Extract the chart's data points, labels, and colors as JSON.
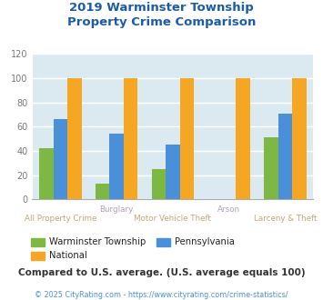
{
  "title": "2019 Warminster Township\nProperty Crime Comparison",
  "categories": [
    "All Property Crime",
    "Burglary",
    "Motor Vehicle Theft",
    "Arson",
    "Larceny & Theft"
  ],
  "warminster": [
    42,
    13,
    25,
    0,
    51
  ],
  "national": [
    100,
    100,
    100,
    100,
    100
  ],
  "pennsylvania": [
    66,
    54,
    45,
    0,
    71
  ],
  "bar_colors": {
    "warminster": "#7cb843",
    "national": "#f5a623",
    "pennsylvania": "#4a90d9"
  },
  "ylim": [
    0,
    120
  ],
  "yticks": [
    0,
    20,
    40,
    60,
    80,
    100,
    120
  ],
  "background_color": "#daeaf0",
  "title_color": "#1a5ca8",
  "note": "Compared to U.S. average. (U.S. average equals 100)",
  "footer": "© 2025 CityRating.com - https://www.cityrating.com/crime-statistics/",
  "top_labels": [
    [
      1,
      "Burglary"
    ],
    [
      3,
      "Arson"
    ]
  ],
  "bottom_labels": [
    [
      0,
      "All Property Crime"
    ],
    [
      2,
      "Motor Vehicle Theft"
    ],
    [
      4,
      "Larceny & Theft"
    ]
  ],
  "top_label_color": "#b0a0c0",
  "bottom_label_color": "#c0a878",
  "legend_labels": [
    "Warminster Township",
    "National",
    "Pennsylvania"
  ],
  "legend_colors": [
    "#7cb843",
    "#f5a623",
    "#4a90d9"
  ],
  "note_color": "#333333",
  "footer_color": "#4a90d9"
}
